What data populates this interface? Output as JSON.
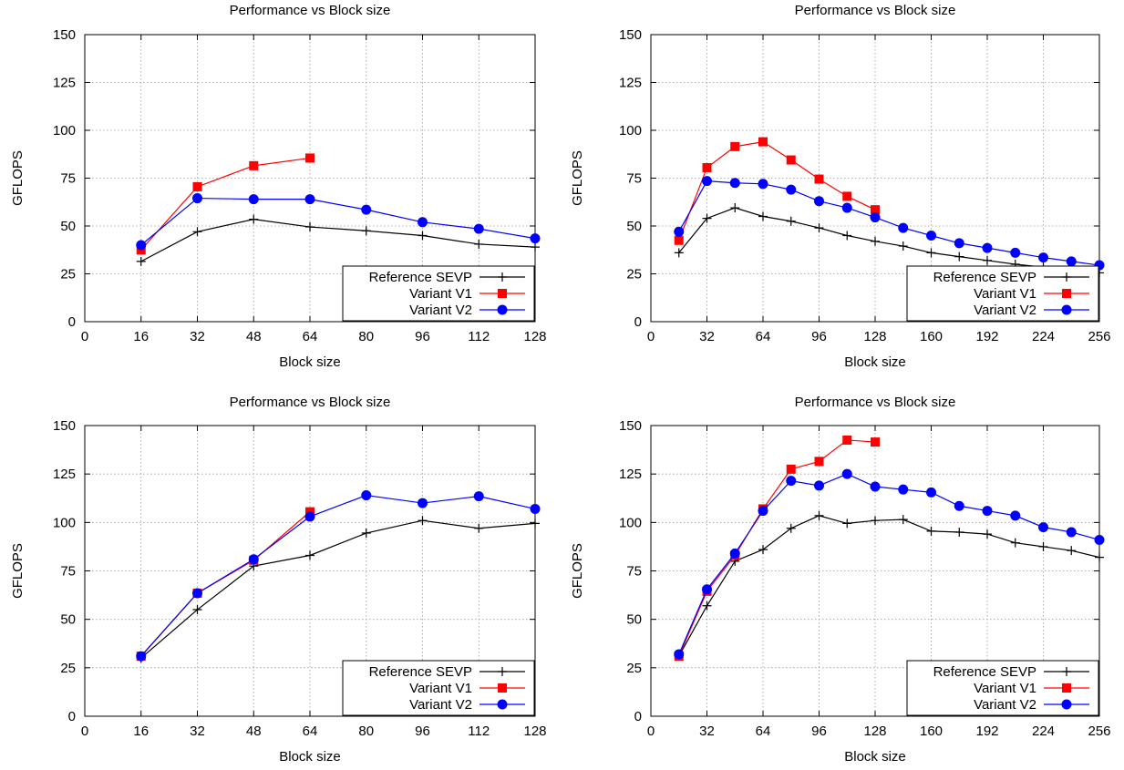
{
  "figure": {
    "colors": {
      "reference": "#000000",
      "v1": "#ff0000",
      "v2": "#0000ff",
      "grid": "#9a9a9a"
    },
    "icons": {
      "reference": "plus-marker-icon",
      "v1": "square-marker-icon",
      "v2": "circle-marker-icon"
    }
  },
  "chart_data": [
    {
      "type": "line",
      "title": "Performance vs Block size",
      "xlabel": "Block size",
      "ylabel": "GFLOPS",
      "xlim": [
        0,
        128
      ],
      "ylim": [
        0,
        150
      ],
      "xticks": [
        0,
        16,
        32,
        48,
        64,
        80,
        96,
        112,
        128
      ],
      "yticks": [
        0,
        25,
        50,
        75,
        100,
        125,
        150
      ],
      "grid": true,
      "legend_position": "bottom-right",
      "series": [
        {
          "name": "Reference SEVP",
          "marker": "plus",
          "x": [
            16,
            32,
            48,
            64,
            80,
            96,
            112,
            128
          ],
          "y": [
            31.5,
            47,
            53.5,
            49.5,
            47.5,
            45,
            40.5,
            39
          ]
        },
        {
          "name": "Variant V1",
          "marker": "square",
          "x": [
            16,
            32,
            48,
            64
          ],
          "y": [
            37.5,
            70.5,
            81.5,
            85.5
          ]
        },
        {
          "name": "Variant V2",
          "marker": "circle",
          "x": [
            16,
            32,
            48,
            64,
            80,
            96,
            112,
            128
          ],
          "y": [
            40,
            64.5,
            64,
            64,
            58.5,
            52,
            48.5,
            43.5
          ]
        }
      ]
    },
    {
      "type": "line",
      "title": "Performance vs Block size",
      "xlabel": "Block size",
      "ylabel": "GFLOPS",
      "xlim": [
        0,
        256
      ],
      "ylim": [
        0,
        150
      ],
      "xticks": [
        0,
        32,
        64,
        96,
        128,
        160,
        192,
        224,
        256
      ],
      "yticks": [
        0,
        25,
        50,
        75,
        100,
        125,
        150
      ],
      "grid": true,
      "legend_position": "bottom-right",
      "series": [
        {
          "name": "Reference SEVP",
          "marker": "plus",
          "x": [
            16,
            32,
            48,
            64,
            80,
            96,
            112,
            128,
            144,
            160,
            176,
            192,
            208,
            224,
            240,
            256
          ],
          "y": [
            36,
            54,
            59.5,
            55,
            52.5,
            49,
            45,
            42,
            39.5,
            36,
            34,
            32,
            30,
            28.5,
            27,
            25.5
          ]
        },
        {
          "name": "Variant V1",
          "marker": "square",
          "x": [
            16,
            32,
            48,
            64,
            80,
            96,
            112,
            128
          ],
          "y": [
            42.5,
            80.5,
            91.5,
            94,
            84.5,
            74.5,
            65.5,
            58.5
          ]
        },
        {
          "name": "Variant V2",
          "marker": "circle",
          "x": [
            16,
            32,
            48,
            64,
            80,
            96,
            112,
            128,
            144,
            160,
            176,
            192,
            208,
            224,
            240,
            256
          ],
          "y": [
            47,
            73.5,
            72.5,
            72,
            69,
            63,
            59.5,
            54.5,
            49,
            45,
            41,
            38.5,
            36,
            33.5,
            31.5,
            29.5
          ]
        }
      ]
    },
    {
      "type": "line",
      "title": "Performance vs Block size",
      "xlabel": "Block size",
      "ylabel": "GFLOPS",
      "xlim": [
        0,
        128
      ],
      "ylim": [
        0,
        150
      ],
      "xticks": [
        0,
        16,
        32,
        48,
        64,
        80,
        96,
        112,
        128
      ],
      "yticks": [
        0,
        25,
        50,
        75,
        100,
        125,
        150
      ],
      "grid": true,
      "legend_position": "bottom-right",
      "series": [
        {
          "name": "Reference SEVP",
          "marker": "plus",
          "x": [
            16,
            32,
            48,
            64,
            80,
            96,
            112,
            128
          ],
          "y": [
            30,
            55,
            77.5,
            83,
            94.5,
            101,
            97,
            99.5
          ]
        },
        {
          "name": "Variant V1",
          "marker": "square",
          "x": [
            16,
            32,
            48,
            64
          ],
          "y": [
            31,
            63.5,
            80.5,
            105.5
          ]
        },
        {
          "name": "Variant V2",
          "marker": "circle",
          "x": [
            16,
            32,
            48,
            64,
            80,
            96,
            112,
            128
          ],
          "y": [
            31,
            63.5,
            81,
            103,
            114,
            110,
            113.5,
            107
          ]
        }
      ]
    },
    {
      "type": "line",
      "title": "Performance vs Block size",
      "xlabel": "Block size",
      "ylabel": "GFLOPS",
      "xlim": [
        0,
        256
      ],
      "ylim": [
        0,
        150
      ],
      "xticks": [
        0,
        32,
        64,
        96,
        128,
        160,
        192,
        224,
        256
      ],
      "yticks": [
        0,
        25,
        50,
        75,
        100,
        125,
        150
      ],
      "grid": true,
      "legend_position": "bottom-right",
      "series": [
        {
          "name": "Reference SEVP",
          "marker": "plus",
          "x": [
            16,
            32,
            48,
            64,
            80,
            96,
            112,
            128,
            144,
            160,
            176,
            192,
            208,
            224,
            240,
            256
          ],
          "y": [
            31,
            57,
            80,
            86,
            97,
            103.5,
            99.5,
            101,
            101.5,
            95.5,
            95,
            94,
            89.5,
            87.5,
            85.5,
            82
          ]
        },
        {
          "name": "Variant V1",
          "marker": "square",
          "x": [
            16,
            32,
            48,
            64,
            80,
            96,
            112,
            128
          ],
          "y": [
            31,
            64.5,
            83,
            107,
            127.5,
            131.5,
            142.5,
            141.5
          ]
        },
        {
          "name": "Variant V2",
          "marker": "circle",
          "x": [
            16,
            32,
            48,
            64,
            80,
            96,
            112,
            128,
            144,
            160,
            176,
            192,
            208,
            224,
            240,
            256
          ],
          "y": [
            32,
            65.5,
            84,
            106,
            121.5,
            119,
            125,
            118.5,
            117,
            115.5,
            108.5,
            106,
            103.5,
            97.5,
            95,
            91
          ]
        }
      ]
    }
  ]
}
